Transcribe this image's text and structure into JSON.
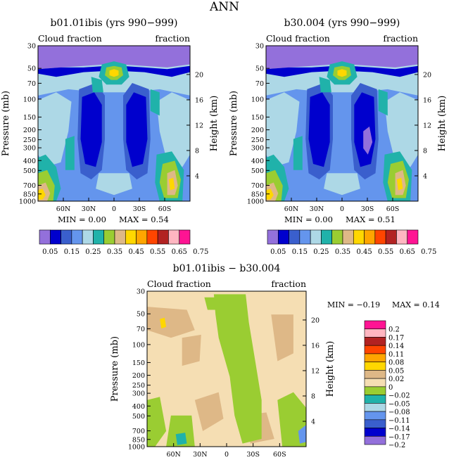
{
  "page_title": "ANN",
  "colors": {
    "abs": [
      "#9370db",
      "#0000cd",
      "#3a5fcd",
      "#6495ed",
      "#add8e6",
      "#20b2aa",
      "#9acd32",
      "#deb887",
      "#ffd700",
      "#ffa500",
      "#ff4500",
      "#b22222",
      "#ffb6c1",
      "#ff1493"
    ],
    "diff": [
      "#9370db",
      "#0000cd",
      "#3a5fcd",
      "#6495ed",
      "#add8e6",
      "#20b2aa",
      "#9acd32",
      "#f5deb3",
      "#deb887",
      "#ffd700",
      "#ffa500",
      "#ff4500",
      "#b22222",
      "#ffb6c1",
      "#ff1493"
    ]
  },
  "chart_data": [
    {
      "id": "panel1",
      "type": "heatmap",
      "title": "b01.01ibis (yrs 990−999)",
      "left_label": "Cloud fraction",
      "right_label": "fraction",
      "ylabel": "Pressure (mb)",
      "ylabel_right": "Height (km)",
      "x_ticks": [
        "60N",
        "30N",
        "0",
        "30S",
        "60S"
      ],
      "x_values": [
        60,
        30,
        0,
        -30,
        -60
      ],
      "xlim": [
        90,
        -90
      ],
      "y_ticks": [
        "30",
        "50",
        "70",
        "100",
        "150",
        "200",
        "250",
        "300",
        "400",
        "500",
        "700",
        "850",
        "1000"
      ],
      "y_values": [
        30,
        50,
        70,
        100,
        150,
        200,
        250,
        300,
        400,
        500,
        700,
        850,
        1000
      ],
      "ylim": [
        30,
        1000
      ],
      "height_ticks": [
        "20",
        "16",
        "12",
        "8",
        "4"
      ],
      "height_values": [
        20,
        16,
        12,
        8,
        4
      ],
      "min_text": "MIN =   0.00",
      "max_text": "MAX =   0.54",
      "min": 0.0,
      "max": 0.54
    },
    {
      "id": "panel2",
      "type": "heatmap",
      "title": "b30.004 (yrs 990−999)",
      "left_label": "Cloud fraction",
      "right_label": "fraction",
      "ylabel": "Pressure (mb)",
      "ylabel_right": "Height (km)",
      "x_ticks": [
        "60N",
        "30N",
        "0",
        "30S",
        "60S"
      ],
      "x_values": [
        60,
        30,
        0,
        -30,
        -60
      ],
      "xlim": [
        90,
        -90
      ],
      "y_ticks": [
        "30",
        "50",
        "70",
        "100",
        "150",
        "200",
        "250",
        "300",
        "400",
        "500",
        "700",
        "850",
        "1000"
      ],
      "y_values": [
        30,
        50,
        70,
        100,
        150,
        200,
        250,
        300,
        400,
        500,
        700,
        850,
        1000
      ],
      "ylim": [
        30,
        1000
      ],
      "height_ticks": [
        "20",
        "16",
        "12",
        "8",
        "4"
      ],
      "height_values": [
        20,
        16,
        12,
        8,
        4
      ],
      "min_text": "MIN =   0.00",
      "max_text": "MAX =   0.51",
      "min": 0.0,
      "max": 0.51
    },
    {
      "id": "panel3",
      "type": "heatmap",
      "title": "b01.01ibis − b30.004",
      "left_label": "Cloud fraction",
      "right_label": "fraction",
      "ylabel": "Pressure (mb)",
      "ylabel_right": "Height (km)",
      "x_ticks": [
        "60N",
        "30N",
        "0",
        "30S",
        "60S"
      ],
      "x_values": [
        60,
        30,
        0,
        -30,
        -60
      ],
      "xlim": [
        90,
        -90
      ],
      "y_ticks": [
        "30",
        "50",
        "70",
        "100",
        "150",
        "200",
        "250",
        "300",
        "400",
        "500",
        "700",
        "850",
        "1000"
      ],
      "y_values": [
        30,
        50,
        70,
        100,
        150,
        200,
        250,
        300,
        400,
        500,
        700,
        850,
        1000
      ],
      "ylim": [
        30,
        1000
      ],
      "height_ticks": [
        "20",
        "16",
        "12",
        "8",
        "4"
      ],
      "height_values": [
        20,
        16,
        12,
        8,
        4
      ],
      "min_text": "MIN =   −0.19",
      "max_text": "MAX =   0.14",
      "min": -0.19,
      "max": 0.14
    }
  ],
  "colorbar_abs_labels": [
    "0.05",
    "0.15",
    "0.25",
    "0.35",
    "0.45",
    "0.55",
    "0.65",
    "0.75"
  ],
  "colorbar_diff_labels": [
    "0.2",
    "0.17",
    "0.14",
    "0.11",
    "0.08",
    "0.05",
    "0.02",
    "0",
    "−0.02",
    "−0.05",
    "−0.08",
    "−0.11",
    "−0.14",
    "−0.17",
    "−0.2"
  ]
}
